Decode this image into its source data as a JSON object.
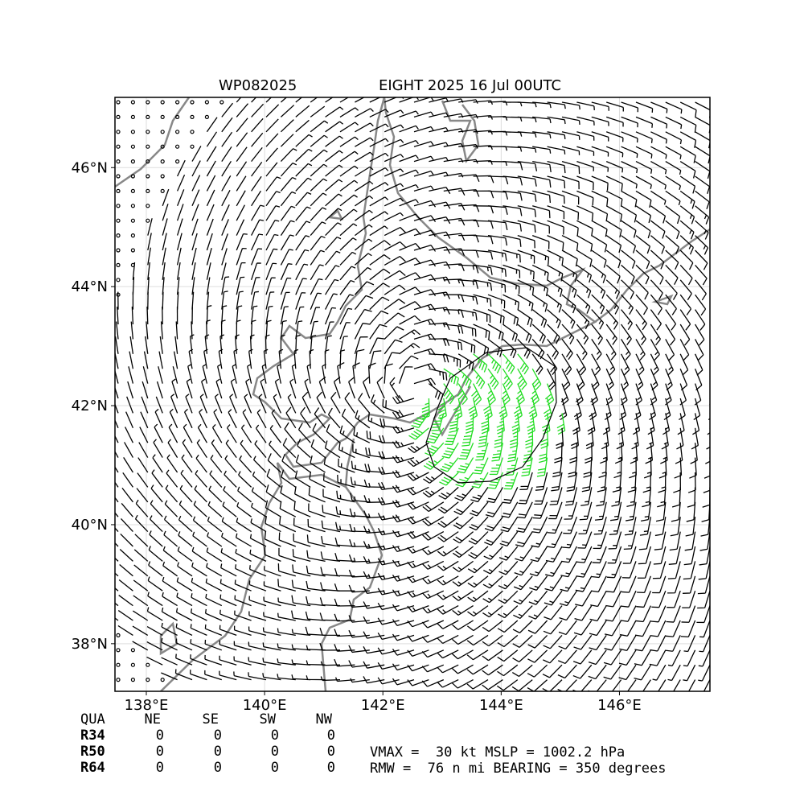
{
  "map": {
    "title_left": "WP082025",
    "title_right": "EIGHT 2025 16 Jul 00UTC",
    "xlim": [
      137.47,
      147.53
    ],
    "ylim": [
      37.2,
      47.18
    ],
    "xticks": [
      {
        "value": 138,
        "label": "138°E"
      },
      {
        "value": 140,
        "label": "140°E"
      },
      {
        "value": 142,
        "label": "142°E"
      },
      {
        "value": 144,
        "label": "144°E"
      },
      {
        "value": 146,
        "label": "146°E"
      }
    ],
    "yticks": [
      {
        "value": 38,
        "label": "38°N"
      },
      {
        "value": 40,
        "label": "40°N"
      },
      {
        "value": 42,
        "label": "42°N"
      },
      {
        "value": 44,
        "label": "44°N"
      },
      {
        "value": 46,
        "label": "46°N"
      }
    ],
    "grid": true
  },
  "table": {
    "header": [
      "QUA",
      "NE",
      "SE",
      "SW",
      "NW"
    ],
    "rows": [
      [
        "R34",
        0,
        0,
        0,
        0
      ],
      [
        "R50",
        0,
        0,
        0,
        0
      ],
      [
        "R64",
        0,
        0,
        0,
        0
      ]
    ]
  },
  "info": [
    "VMAX =  30 kt MSLP = 1002.2 hPa",
    "RMW =  76 n mi BEARING = 350 degrees"
  ]
}
